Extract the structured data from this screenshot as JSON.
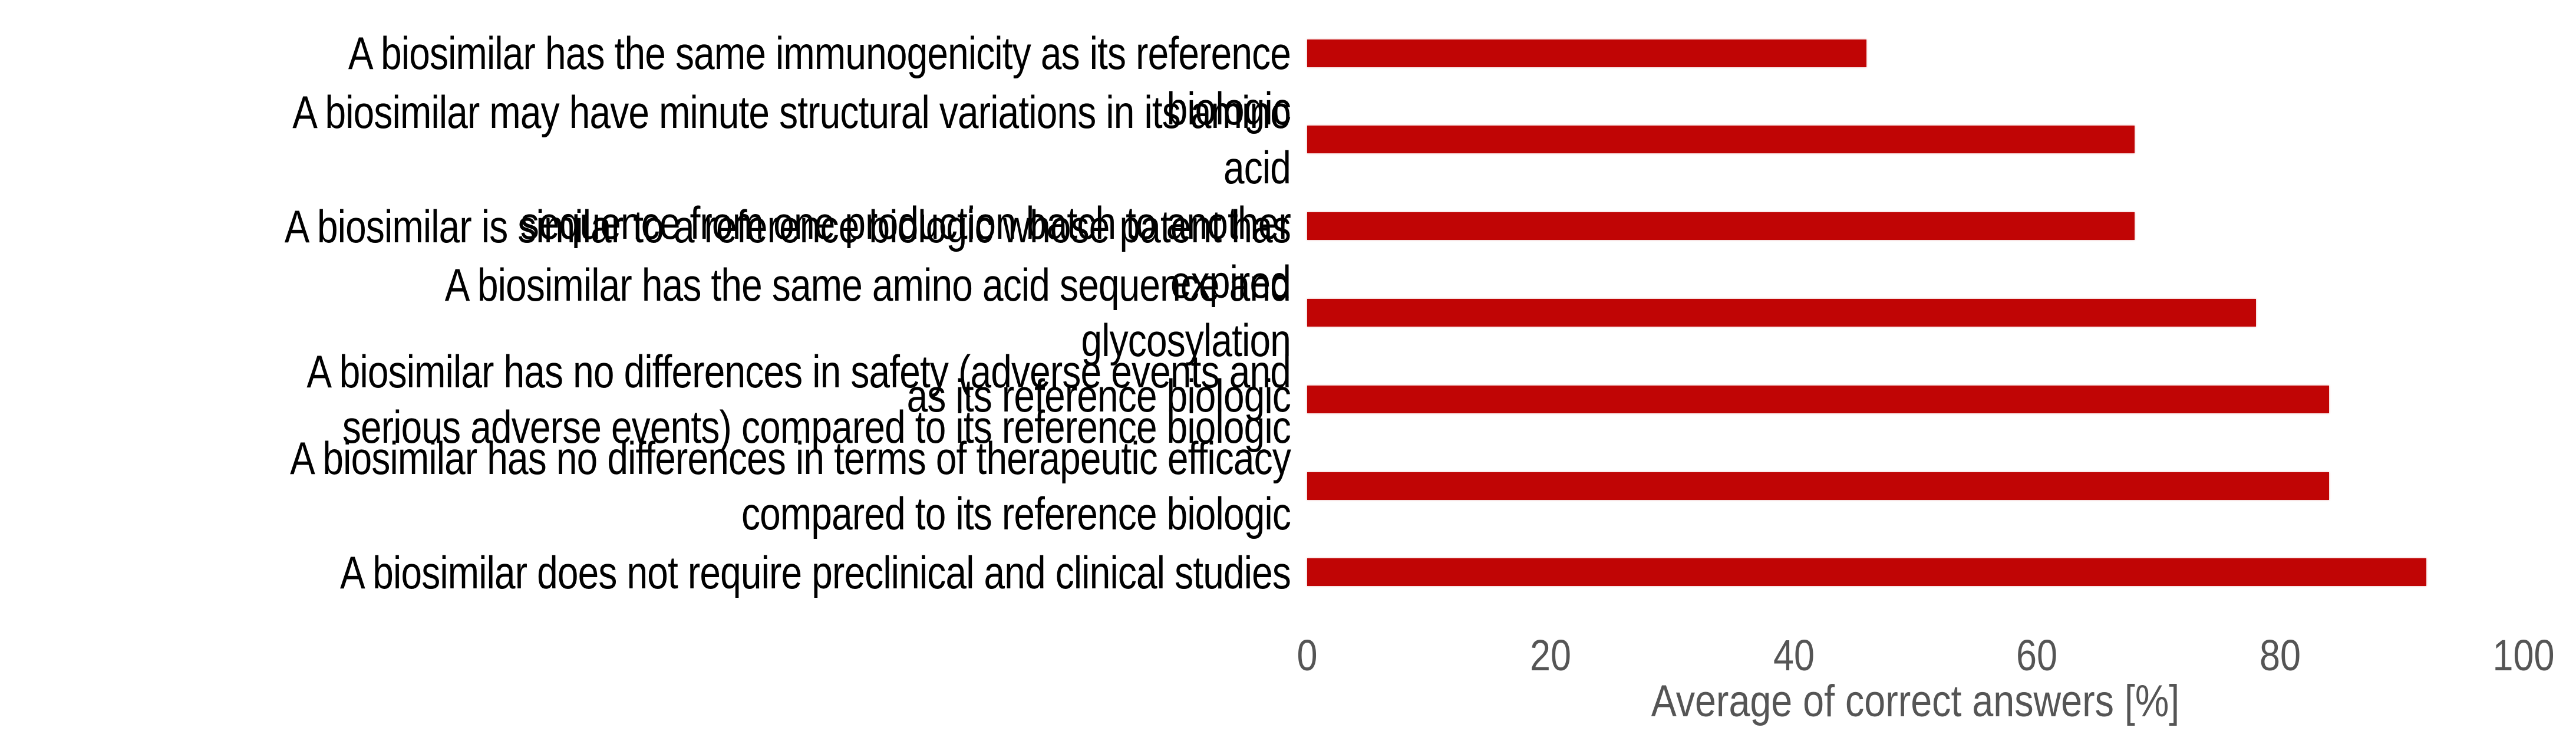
{
  "chart_data": {
    "type": "bar",
    "orientation": "horizontal",
    "categories": [
      "A biosimilar has the same immunogenicity as its reference biologic",
      "A biosimilar may have minute structural variations in its amino acid\nsequence from one production batch to another",
      "A biosimilar is similar to a reference biologic whose patent has expired",
      "A biosimilar has the same amino acid sequence and glycosylation\nas its reference biologic",
      "A biosimilar has no differences in safety (adverse events and\nserious adverse events) compared to its reference biologic",
      "A biosimilar has no differences in terms of therapeutic efficacy\ncompared to its reference biologic",
      "A biosimilar does not require preclinical and clinical studies"
    ],
    "values": [
      46,
      68,
      68,
      78,
      84,
      84,
      92
    ],
    "title": "",
    "xlabel": "Average of correct answers [%]",
    "ylabel": "",
    "xticks": [
      0,
      20,
      40,
      60,
      80,
      100
    ],
    "xlim": [
      0,
      100
    ],
    "grid": false,
    "legend": "none",
    "colors": {
      "bar": "#C00505",
      "category_text": "#000000",
      "axis_text": "#555555",
      "background": "#ffffff"
    }
  }
}
